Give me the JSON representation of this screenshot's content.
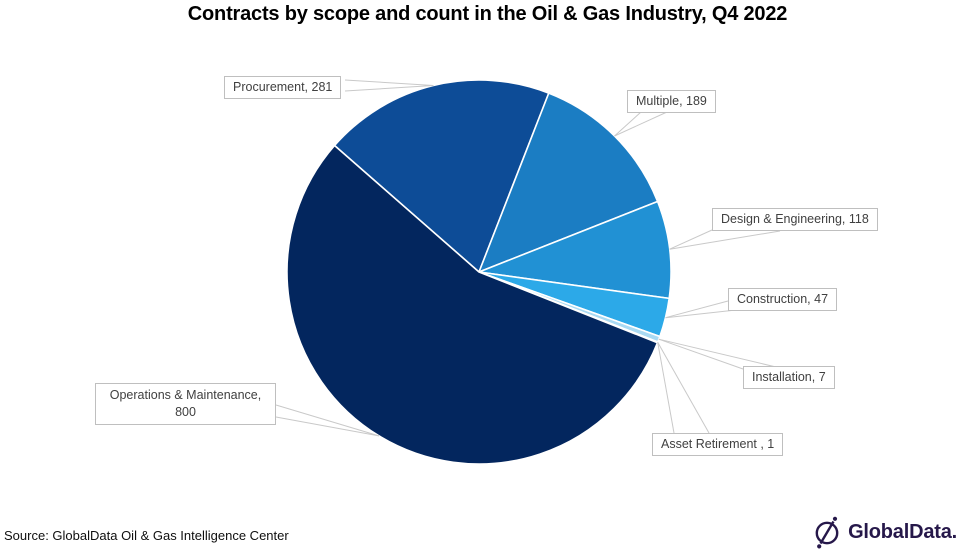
{
  "title": "Contracts by scope and count in the Oil & Gas Industry, Q4 2022",
  "source": "Source: GlobalData Oil & Gas Intelligence Center",
  "brand": {
    "name": "GlobalData.",
    "color": "#26184a",
    "icon": "globaldata-compass-icon"
  },
  "chart_data": {
    "type": "pie",
    "title": "Contracts by scope and count in the Oil & Gas Industry, Q4 2022",
    "total": 1443,
    "start_angle_deg": -48.8,
    "legend_position": "callout-labels",
    "slice_border_color": "#ffffff",
    "callout_line_color": "#c9c9c9",
    "slices": [
      {
        "label": "Procurement",
        "value": 281,
        "display": "Procurement, 281",
        "color": "#0d4c97"
      },
      {
        "label": "Multiple",
        "value": 189,
        "display": "Multiple, 189",
        "color": "#1b7dc3"
      },
      {
        "label": "Design & Engineering",
        "value": 118,
        "display": "Design & Engineering, 118",
        "color": "#2191d4"
      },
      {
        "label": "Construction",
        "value": 47,
        "display": "Construction, 47",
        "color": "#2ca9e8"
      },
      {
        "label": "Installation",
        "value": 7,
        "display": "Installation, 7",
        "color": "#a9daf3"
      },
      {
        "label": "Asset Retirement",
        "value": 1,
        "display": "Asset Retirement , 1",
        "color": "#e4f1fa"
      },
      {
        "label": "Operations & Maintenance",
        "value": 800,
        "display": "Operations & Maintenance, 800",
        "color": "#03265e"
      }
    ]
  }
}
